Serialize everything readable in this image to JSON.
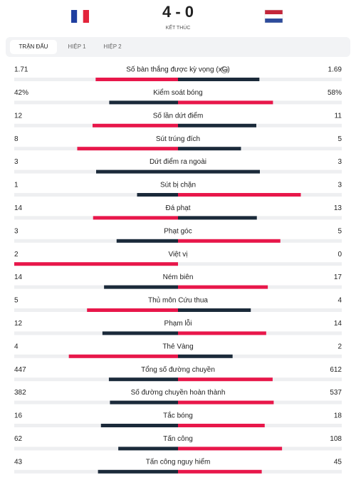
{
  "header": {
    "score": "4 - 0",
    "status": "KẾT THÚC"
  },
  "tabs": [
    "TRẬN ĐẤU",
    "HIỆP 1",
    "HIỆP 2"
  ],
  "stats": [
    {
      "label": "Số bàn thắng được kỳ vọng (xG)",
      "home": 1.71,
      "away": 1.69
    },
    {
      "label": "Kiểm soát bóng",
      "home": 42,
      "away": 58,
      "home_label": "42%",
      "away_label": "58%"
    },
    {
      "label": "Số lần dứt điểm",
      "home": 12,
      "away": 11
    },
    {
      "label": "Sút trúng đích",
      "home": 8,
      "away": 5
    },
    {
      "label": "Dứt điểm ra ngoài",
      "home": 3,
      "away": 3
    },
    {
      "label": "Sút bị chặn",
      "home": 1,
      "away": 3
    },
    {
      "label": "Đá phạt",
      "home": 14,
      "away": 13
    },
    {
      "label": "Phạt góc",
      "home": 3,
      "away": 5
    },
    {
      "label": "Việt vị",
      "home": 2,
      "away": 0
    },
    {
      "label": "Ném biên",
      "home": 14,
      "away": 17
    },
    {
      "label": "Thủ môn Cứu thua",
      "home": 5,
      "away": 4
    },
    {
      "label": "Phạm lỗi",
      "home": 12,
      "away": 14
    },
    {
      "label": "Thẻ Vàng",
      "home": 4,
      "away": 2
    },
    {
      "label": "Tổng số đường chuyền",
      "home": 447,
      "away": 612
    },
    {
      "label": "Số đường chuyền hoàn thành",
      "home": 382,
      "away": 537
    },
    {
      "label": "Tắc bóng",
      "home": 16,
      "away": 18
    },
    {
      "label": "Tấn công",
      "home": 62,
      "away": 108
    },
    {
      "label": "Tấn công nguy hiểm",
      "home": 43,
      "away": 45
    }
  ]
}
